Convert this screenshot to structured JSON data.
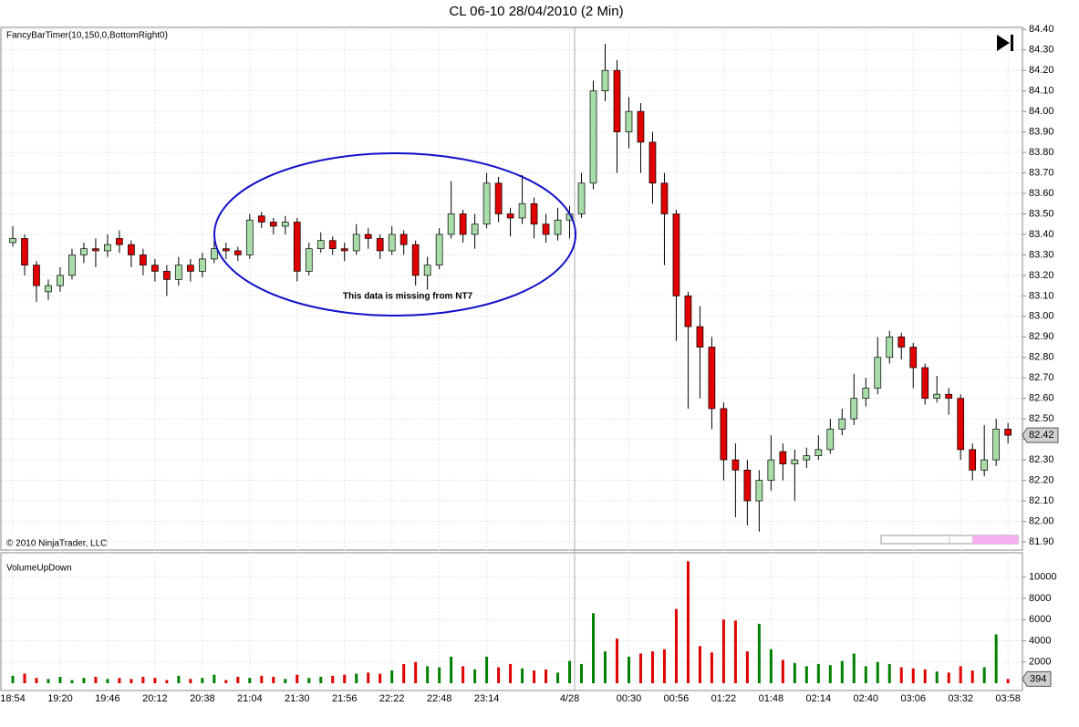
{
  "title": "CL 06-10  28/04/2010 (2 Min)",
  "chart_data": [
    {
      "type": "candlestick",
      "title": "FancyBarTimer(10,150,0,BottomRight0)",
      "copyright": "© 2010 NinjaTrader, LLC",
      "annotation": "This data is missing from NT7",
      "categories": [
        "18:54",
        null,
        null,
        null,
        "19:20",
        null,
        null,
        null,
        "19:46",
        null,
        null,
        null,
        "20:12",
        null,
        null,
        null,
        "20:38",
        null,
        null,
        null,
        "21:04",
        null,
        null,
        null,
        "21:30",
        null,
        null,
        null,
        "21:56",
        null,
        null,
        null,
        "22:22",
        null,
        null,
        null,
        "22:48",
        null,
        null,
        null,
        "23:14",
        null,
        null,
        null,
        null,
        null,
        null,
        "4/28",
        null,
        null,
        null,
        null,
        "00:30",
        null,
        null,
        null,
        "00:56",
        null,
        null,
        null,
        "01:22",
        null,
        null,
        null,
        "01:48",
        null,
        null,
        null,
        "02:14",
        null,
        null,
        null,
        "02:40",
        null,
        null,
        null,
        "03:06",
        null,
        null,
        null,
        "03:32",
        null,
        null,
        null,
        "03:58"
      ],
      "open": [
        83.36,
        83.38,
        83.25,
        83.12,
        83.15,
        83.2,
        83.3,
        83.33,
        83.32,
        83.38,
        83.35,
        83.3,
        83.25,
        83.22,
        83.18,
        83.25,
        83.22,
        83.28,
        83.33,
        83.32,
        83.3,
        83.49,
        83.46,
        83.44,
        83.46,
        83.22,
        83.33,
        83.37,
        83.33,
        83.32,
        83.4,
        83.38,
        83.32,
        83.4,
        83.35,
        83.2,
        83.25,
        83.4,
        83.5,
        83.4,
        83.45,
        83.65,
        83.5,
        83.48,
        83.55,
        83.45,
        83.4,
        83.47,
        83.5,
        83.65,
        84.1,
        84.2,
        83.9,
        84.0,
        83.85,
        83.65,
        83.5,
        83.1,
        82.95,
        82.85,
        82.55,
        82.3,
        82.25,
        82.1,
        82.2,
        82.34,
        82.28,
        82.3,
        82.32,
        82.35,
        82.45,
        82.5,
        82.6,
        82.65,
        82.8,
        82.9,
        82.85,
        82.75,
        82.6,
        82.62,
        82.6,
        82.35,
        82.25,
        82.3,
        82.45
      ],
      "high": [
        83.44,
        83.4,
        83.27,
        83.18,
        83.24,
        83.33,
        83.36,
        83.38,
        83.4,
        83.42,
        83.37,
        83.33,
        83.28,
        83.25,
        83.29,
        83.28,
        83.31,
        83.37,
        83.36,
        83.34,
        83.5,
        83.51,
        83.48,
        83.49,
        83.48,
        83.36,
        83.41,
        83.39,
        83.36,
        83.45,
        83.43,
        83.4,
        83.44,
        83.42,
        83.37,
        83.29,
        83.43,
        83.66,
        83.52,
        83.5,
        83.7,
        83.68,
        83.53,
        83.69,
        83.58,
        83.5,
        83.53,
        83.54,
        83.7,
        84.15,
        84.33,
        84.25,
        84.07,
        84.04,
        83.9,
        83.7,
        83.52,
        83.12,
        83.05,
        82.9,
        82.58,
        82.38,
        82.3,
        82.25,
        82.42,
        82.38,
        82.35,
        82.36,
        82.42,
        82.5,
        82.55,
        82.72,
        82.7,
        82.9,
        82.93,
        82.92,
        82.87,
        82.77,
        82.71,
        82.65,
        82.62,
        82.38,
        82.47,
        82.5,
        82.48
      ],
      "low": [
        83.34,
        83.2,
        83.07,
        83.08,
        83.12,
        83.18,
        83.26,
        83.24,
        83.29,
        83.31,
        83.24,
        83.2,
        83.17,
        83.1,
        83.15,
        83.17,
        83.19,
        83.26,
        83.28,
        83.27,
        83.28,
        83.43,
        83.4,
        83.4,
        83.17,
        83.2,
        83.31,
        83.3,
        83.27,
        83.3,
        83.33,
        83.28,
        83.3,
        83.3,
        83.15,
        83.13,
        83.23,
        83.38,
        83.36,
        83.33,
        83.43,
        83.46,
        83.39,
        83.45,
        83.38,
        83.36,
        83.37,
        83.38,
        83.48,
        83.62,
        84.05,
        83.7,
        83.82,
        83.7,
        83.55,
        83.25,
        82.88,
        82.55,
        82.6,
        82.45,
        82.2,
        82.02,
        81.98,
        81.95,
        82.15,
        82.2,
        82.1,
        82.26,
        82.3,
        82.33,
        82.42,
        82.47,
        82.56,
        82.62,
        82.77,
        82.79,
        82.65,
        82.57,
        82.58,
        82.52,
        82.3,
        82.2,
        82.22,
        82.27,
        82.38
      ],
      "close": [
        83.38,
        83.25,
        83.15,
        83.15,
        83.2,
        83.3,
        83.33,
        83.32,
        83.35,
        83.35,
        83.3,
        83.25,
        83.22,
        83.18,
        83.25,
        83.22,
        83.28,
        83.33,
        83.32,
        83.3,
        83.47,
        83.46,
        83.44,
        83.46,
        83.22,
        83.33,
        83.37,
        83.33,
        83.32,
        83.4,
        83.38,
        83.32,
        83.4,
        83.35,
        83.2,
        83.25,
        83.4,
        83.5,
        83.4,
        83.45,
        83.65,
        83.5,
        83.48,
        83.55,
        83.45,
        83.4,
        83.47,
        83.5,
        83.65,
        84.1,
        84.2,
        83.9,
        84.0,
        83.85,
        83.65,
        83.5,
        83.1,
        82.95,
        82.85,
        82.55,
        82.3,
        82.25,
        82.1,
        82.2,
        82.3,
        82.28,
        82.3,
        82.32,
        82.35,
        82.45,
        82.5,
        82.6,
        82.65,
        82.8,
        82.9,
        82.85,
        82.75,
        82.6,
        82.62,
        82.6,
        82.35,
        82.25,
        82.3,
        82.45,
        82.42
      ],
      "up_color": "#a8dca8",
      "down_color": "#e00000",
      "ylim": [
        81.86,
        84.41
      ],
      "yticks": [
        {
          "value": 81.9,
          "label": "81.90"
        },
        {
          "value": 82.0,
          "label": "82.00"
        },
        {
          "value": 82.1,
          "label": "82.10"
        },
        {
          "value": 82.2,
          "label": "82.20"
        },
        {
          "value": 82.3,
          "label": "82.30"
        },
        {
          "value": 82.4,
          "label": "82.40"
        },
        {
          "value": 82.5,
          "label": "82.50"
        },
        {
          "value": 82.6,
          "label": "82.60"
        },
        {
          "value": 82.7,
          "label": "82.70"
        },
        {
          "value": 82.8,
          "label": "82.80"
        },
        {
          "value": 82.9,
          "label": "82.90"
        },
        {
          "value": 83.0,
          "label": "83.00"
        },
        {
          "value": 83.1,
          "label": "83.10"
        },
        {
          "value": 83.2,
          "label": "83.20"
        },
        {
          "value": 83.3,
          "label": "83.30"
        },
        {
          "value": 83.4,
          "label": "83.40"
        },
        {
          "value": 83.5,
          "label": "83.50"
        },
        {
          "value": 83.6,
          "label": "83.60"
        },
        {
          "value": 83.7,
          "label": "83.70"
        },
        {
          "value": 83.8,
          "label": "83.80"
        },
        {
          "value": 83.9,
          "label": "83.90"
        },
        {
          "value": 84.0,
          "label": "84.00"
        },
        {
          "value": 84.1,
          "label": "84.10"
        },
        {
          "value": 84.2,
          "label": "84.20"
        },
        {
          "value": 84.3,
          "label": "84.30"
        },
        {
          "value": 84.4,
          "label": "84.40"
        }
      ],
      "grid": true
    },
    {
      "type": "bar",
      "title": "VolumeUpDown",
      "values": [
        700,
        900,
        500,
        400,
        600,
        300,
        500,
        600,
        400,
        500,
        400,
        600,
        500,
        300,
        700,
        400,
        500,
        800,
        300,
        600,
        500,
        700,
        600,
        400,
        800,
        500,
        600,
        700,
        800,
        900,
        1000,
        900,
        1200,
        1800,
        2000,
        1600,
        1500,
        2500,
        1600,
        1300,
        2500,
        1500,
        1800,
        1400,
        1200,
        1300,
        1000,
        2100,
        1800,
        6600,
        3000,
        4200,
        2500,
        2800,
        3000,
        3200,
        7000,
        11500,
        3500,
        2900,
        6000,
        5900,
        3000,
        5600,
        3200,
        2200,
        1900,
        1600,
        1800,
        1700,
        2100,
        2800,
        1600,
        2000,
        1800,
        1500,
        1400,
        1300,
        1100,
        1000,
        1600,
        1200,
        1500,
        4600,
        394
      ],
      "up_color": "#008000",
      "down_color": "#e00000",
      "ylim": [
        0,
        12300
      ],
      "yticks": [
        2000,
        4000,
        6000,
        8000,
        10000
      ],
      "grid": true
    }
  ]
}
